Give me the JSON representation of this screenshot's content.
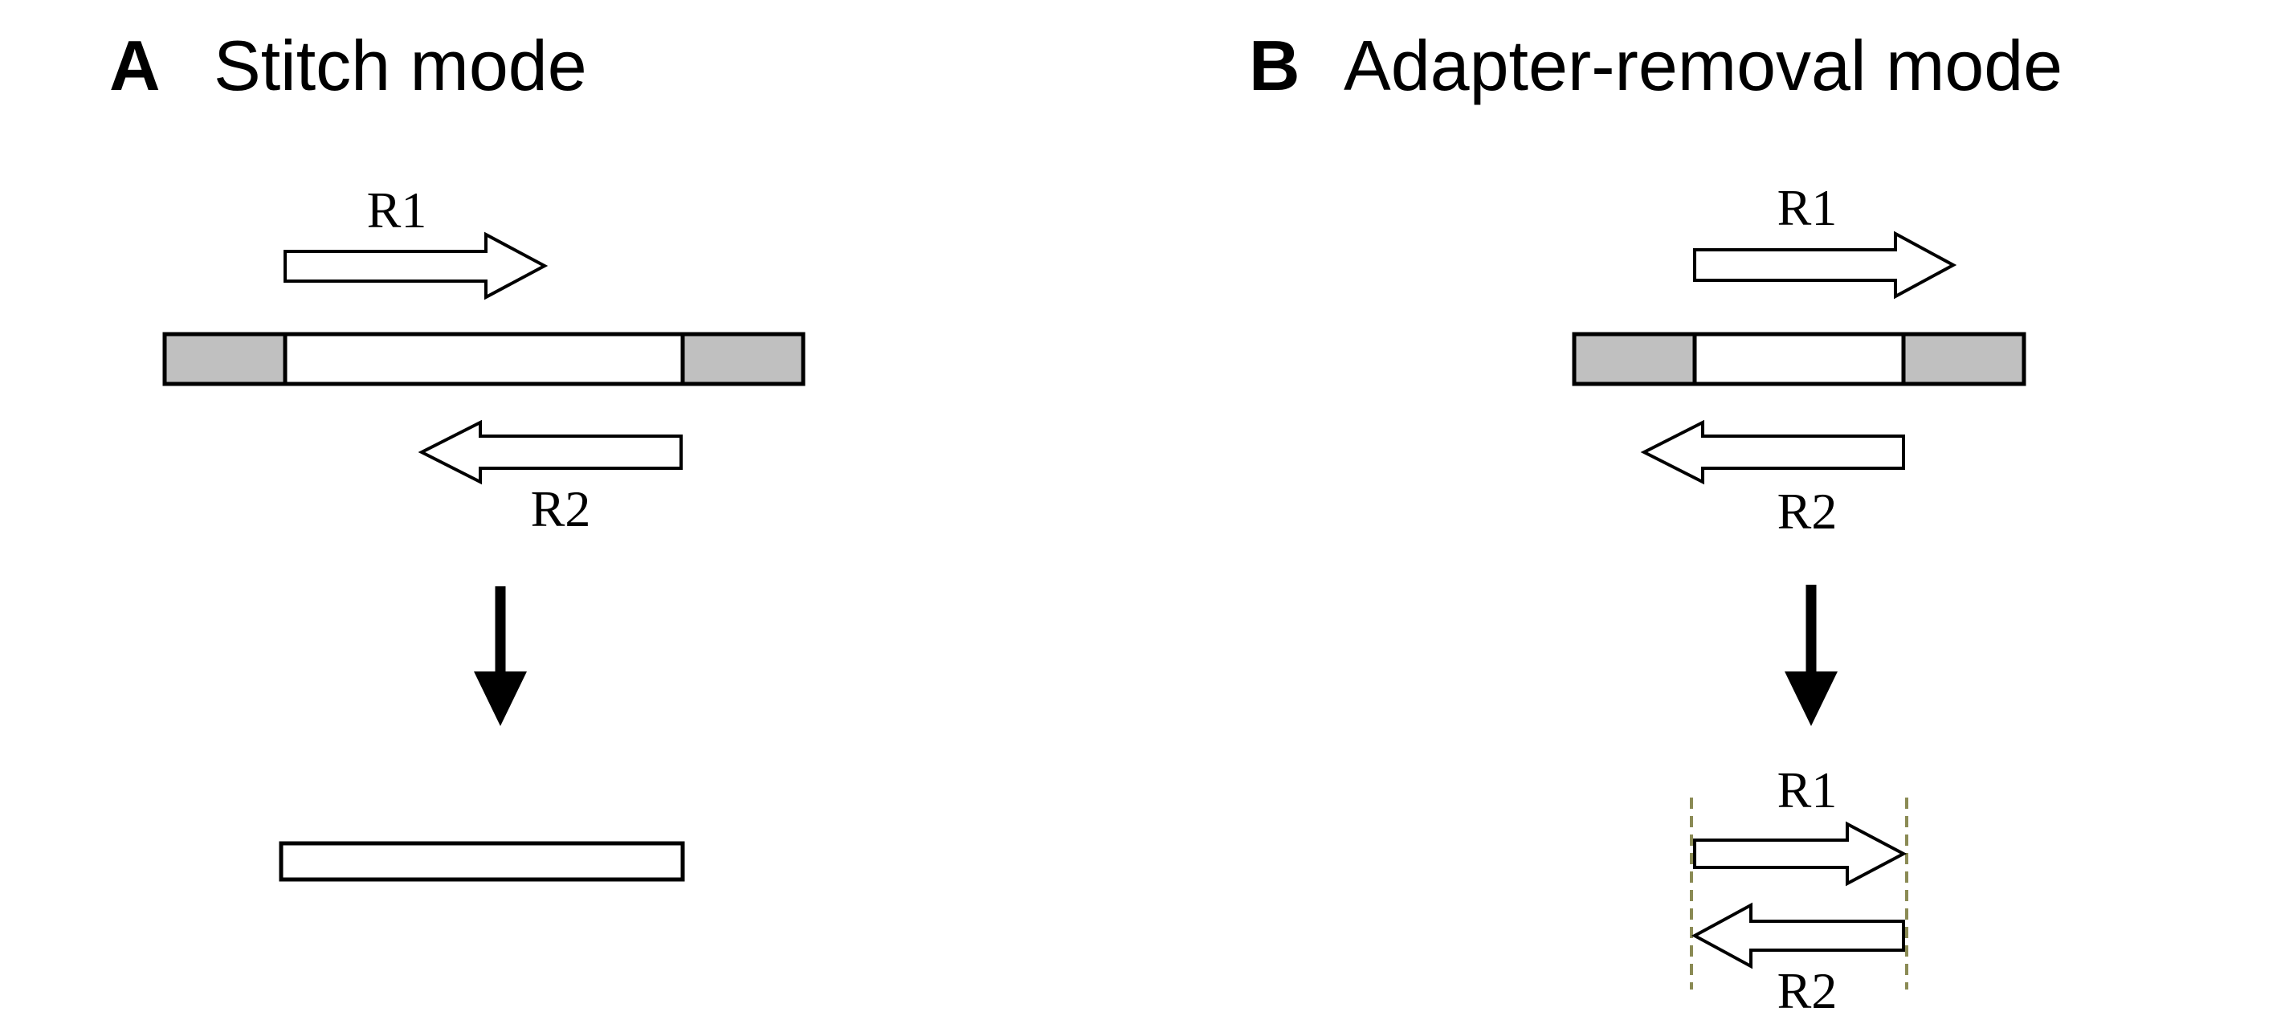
{
  "panels": {
    "a": {
      "letter": "A",
      "title": "Stitch mode",
      "forward_read": "R1",
      "reverse_read": "R2"
    },
    "b": {
      "letter": "B",
      "title": "Adapter-removal mode",
      "forward_read": "R1",
      "reverse_read": "R2",
      "result_forward_read": "R1",
      "result_reverse_read": "R2"
    }
  },
  "colors": {
    "adapter_fill": "#c0c0c0",
    "insert_fill": "#ffffff",
    "stroke": "#000000",
    "trim_line": "#8b8b55"
  }
}
